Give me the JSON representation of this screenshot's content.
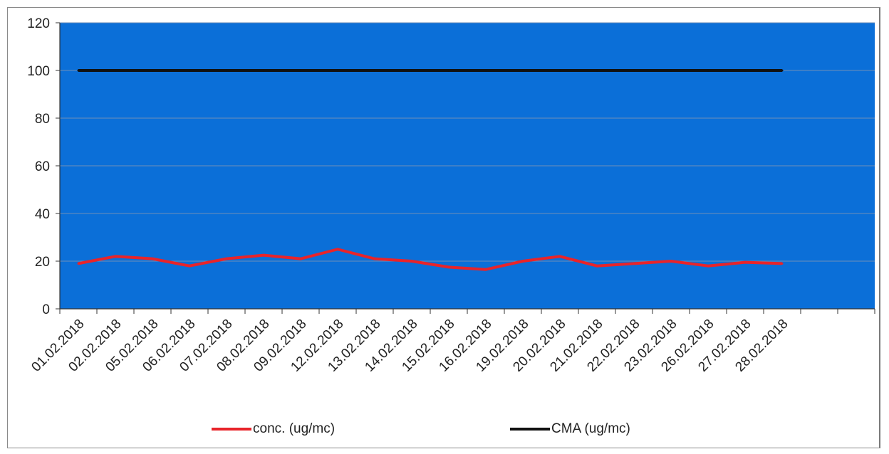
{
  "chart_data": {
    "type": "line",
    "title": "",
    "xlabel": "",
    "ylabel": "",
    "ylim": [
      0,
      120
    ],
    "yticks": [
      0,
      20,
      40,
      60,
      80,
      100,
      120
    ],
    "grid": true,
    "legend_position": "bottom",
    "plot_background": "#0b6fd8",
    "categories": [
      "01.02.2018",
      "02.02.2018",
      "05.02.2018",
      "06.02.2018",
      "07.02.2018",
      "08.02.2018",
      "09.02.2018",
      "12.02.2018",
      "13.02.2018",
      "14.02.2018",
      "15.02.2018",
      "16.02.2018",
      "19.02.2018",
      "20.02.2018",
      "21.02.2018",
      "22.02.2018",
      "23.02.2018",
      "26.02.2018",
      "27.02.2018",
      "28.02.2018"
    ],
    "series": [
      {
        "name": "conc. (ug/mc)",
        "color": "#e8242a",
        "values": [
          19,
          22,
          21,
          18,
          21,
          22.5,
          21,
          25,
          21,
          20,
          17.5,
          16.5,
          20,
          22,
          18,
          19,
          20,
          18,
          19.5,
          19
        ]
      },
      {
        "name": "CMA (ug/mc)",
        "color": "#111111",
        "values": [
          100,
          100,
          100,
          100,
          100,
          100,
          100,
          100,
          100,
          100,
          100,
          100,
          100,
          100,
          100,
          100,
          100,
          100,
          100,
          100
        ]
      }
    ]
  }
}
